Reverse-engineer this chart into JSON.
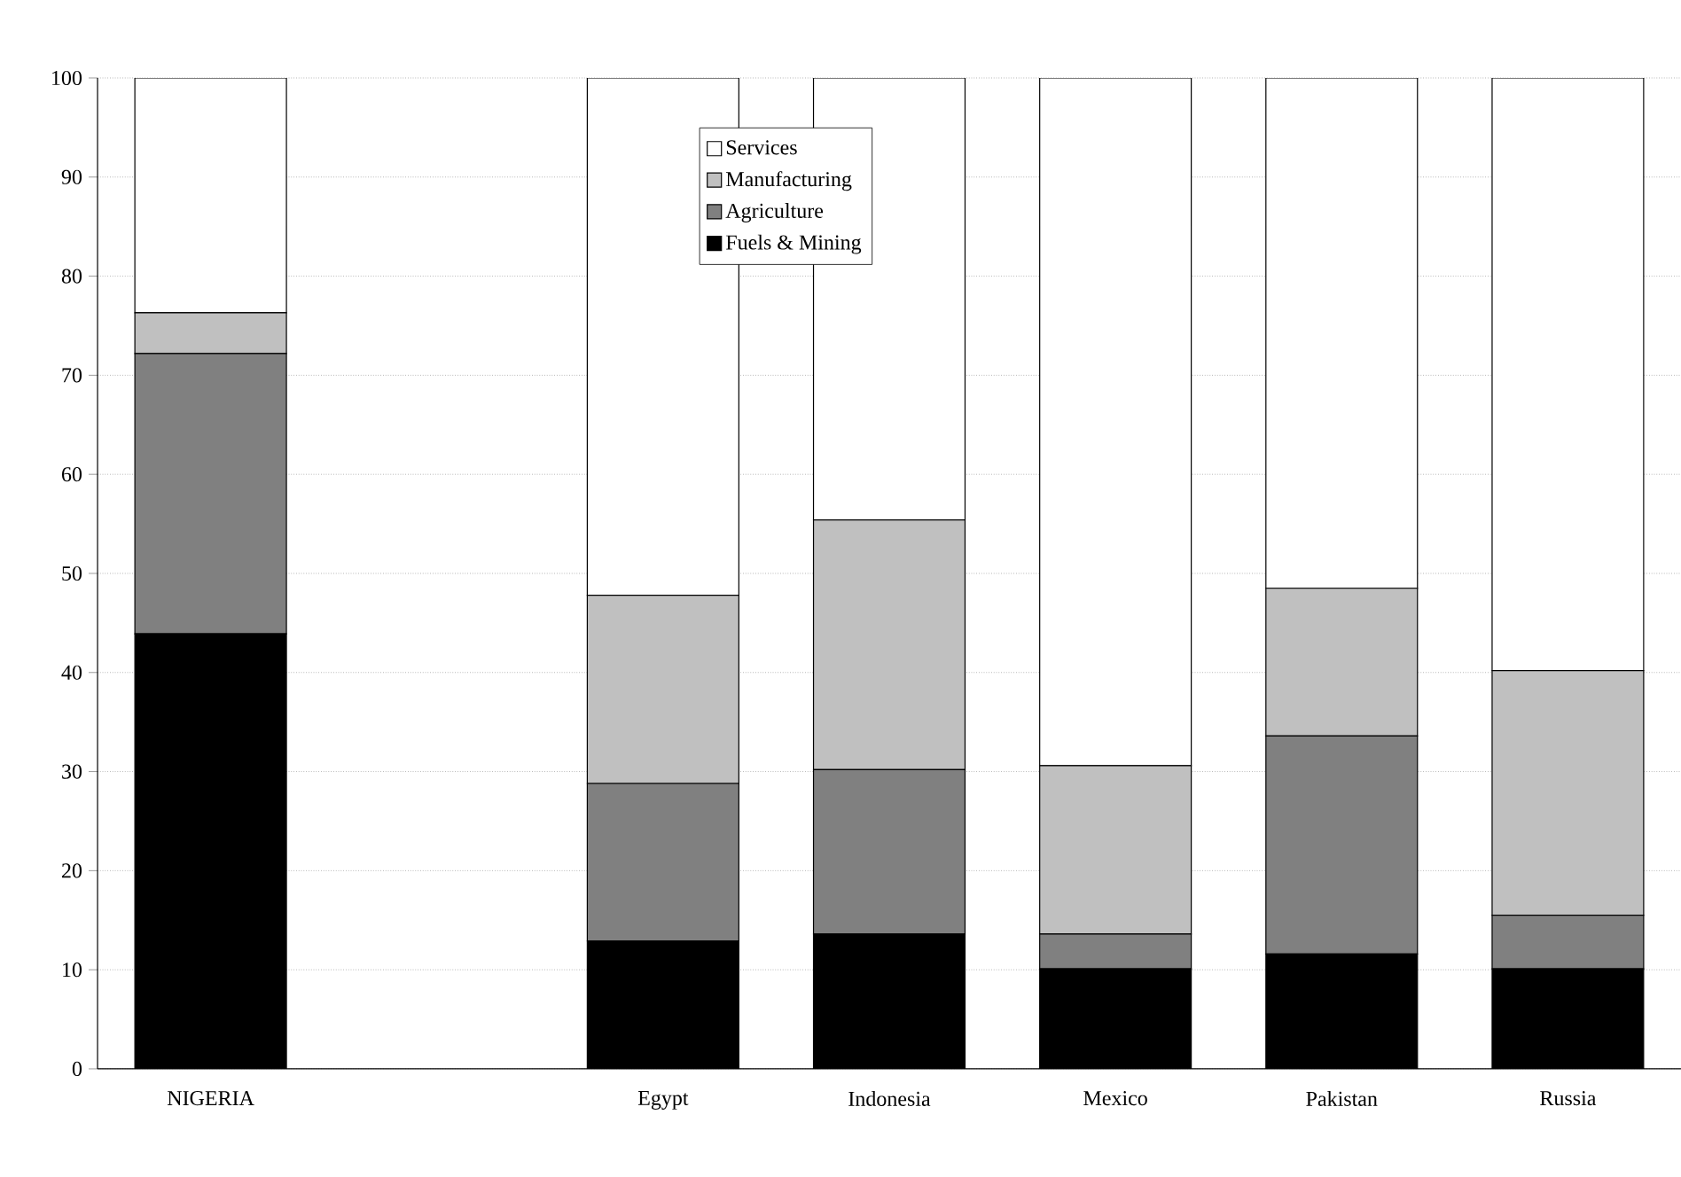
{
  "chart_data": {
    "type": "bar",
    "stacked": true,
    "categories": [
      "NIGERIA",
      null,
      "Egypt",
      "Indonesia",
      "Mexico",
      "Pakistan",
      "Russia"
    ],
    "series": [
      {
        "name": "Fuels & Mining",
        "color": "#000000",
        "values": [
          43.9,
          null,
          12.9,
          13.6,
          10.1,
          11.6,
          10.1
        ]
      },
      {
        "name": "Agriculture",
        "color": "#808080",
        "values": [
          28.3,
          null,
          15.9,
          16.6,
          3.5,
          22.0,
          5.4
        ]
      },
      {
        "name": "Manufacturing",
        "color": "#c0c0c0",
        "values": [
          4.1,
          null,
          19.0,
          25.2,
          17.0,
          14.9,
          24.7
        ]
      },
      {
        "name": "Services",
        "color": "#ffffff",
        "values": [
          23.7,
          null,
          52.2,
          44.6,
          69.4,
          51.5,
          59.8
        ]
      }
    ],
    "ylim": [
      0,
      100
    ],
    "yticks": [
      0,
      10,
      20,
      30,
      40,
      50,
      60,
      70,
      80,
      90,
      100
    ],
    "grid": "y",
    "legend": "top"
  }
}
